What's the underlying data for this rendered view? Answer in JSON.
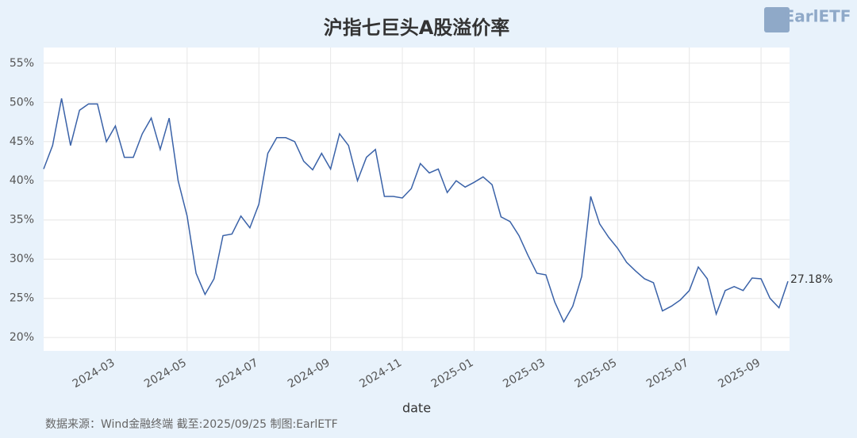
{
  "chart_data": {
    "type": "line",
    "title": "沪指七巨头A股溢价率",
    "xlabel": "date",
    "source": "数据来源：Wind金融终端 截至:2025/09/25 制图:EarlETF",
    "logo": "EarlETF",
    "categories": [
      null,
      null,
      null,
      null,
      null,
      null,
      null,
      null,
      "2024-03",
      null,
      null,
      null,
      null,
      null,
      null,
      null,
      "2024-05",
      null,
      null,
      null,
      null,
      null,
      null,
      null,
      "2024-07",
      null,
      null,
      null,
      null,
      null,
      null,
      null,
      "2024-09",
      null,
      null,
      null,
      null,
      null,
      null,
      null,
      "2024-11",
      null,
      null,
      null,
      null,
      null,
      null,
      null,
      "2025-01",
      null,
      null,
      null,
      null,
      null,
      null,
      null,
      "2025-03",
      null,
      null,
      null,
      null,
      null,
      null,
      null,
      "2025-05",
      null,
      null,
      null,
      null,
      null,
      null,
      null,
      "2025-07",
      null,
      null,
      null,
      null,
      null,
      null,
      null,
      "2025-09",
      null,
      null,
      null
    ],
    "series": [
      {
        "name": "溢价率",
        "color": "#3a62a8",
        "values": [
          41.5,
          44.5,
          50.5,
          44.5,
          49,
          49.8,
          49.8,
          45,
          47,
          43,
          43,
          46,
          48,
          44,
          48,
          40,
          35.5,
          28.2,
          25.5,
          27.5,
          33,
          33.2,
          35.5,
          34,
          37,
          43.5,
          45.5,
          45.5,
          45,
          42.5,
          41.4,
          43.5,
          41.5,
          46,
          44.5,
          40,
          43,
          44,
          38,
          38,
          37.8,
          39,
          42.2,
          41,
          41.5,
          38.5,
          40,
          39.2,
          39.8,
          40.5,
          39.5,
          35.4,
          34.8,
          33,
          30.5,
          28.2,
          28,
          24.5,
          22,
          24,
          27.8,
          38,
          34.5,
          32.8,
          31.4,
          29.6,
          28.5,
          27.5,
          27,
          23.4,
          24,
          24.8,
          26,
          29,
          27.5,
          23,
          26,
          26.5,
          26,
          27.6,
          27.5,
          25,
          23.8,
          27.18
        ],
        "value_labels": [
          null,
          null,
          null,
          null,
          null,
          null,
          null,
          null,
          null,
          null,
          null,
          null,
          null,
          null,
          null,
          null,
          null,
          null,
          null,
          null,
          null,
          null,
          null,
          null,
          null,
          null,
          null,
          null,
          null,
          null,
          null,
          null,
          null,
          null,
          null,
          null,
          null,
          null,
          null,
          null,
          null,
          null,
          null,
          null,
          null,
          null,
          null,
          null,
          null,
          null,
          null,
          null,
          null,
          null,
          null,
          null,
          null,
          null,
          null,
          null,
          null,
          null,
          null,
          null,
          null,
          null,
          null,
          null,
          null,
          null,
          null,
          null,
          null,
          null,
          null,
          null,
          null,
          null,
          null,
          null,
          null,
          null,
          null,
          "27.18%"
        ]
      }
    ],
    "ylim": [
      18.3,
      57
    ],
    "yticks": [
      {
        "value": 20,
        "label": "20%"
      },
      {
        "value": 25,
        "label": "25%"
      },
      {
        "value": 30,
        "label": "30%"
      },
      {
        "value": 35,
        "label": "35%"
      },
      {
        "value": 40,
        "label": "40%"
      },
      {
        "value": 45,
        "label": "45%"
      },
      {
        "value": 50,
        "label": "50%"
      },
      {
        "value": 55,
        "label": "55%"
      }
    ],
    "grid": true
  }
}
